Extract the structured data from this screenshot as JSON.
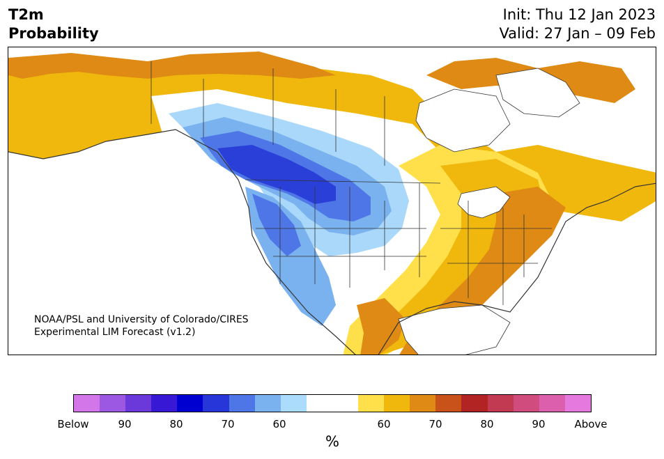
{
  "title": {
    "left_line1": "T2m",
    "left_line2": "Probability",
    "right_line1": "Init: Thu 12 Jan 2023",
    "right_line2": "Valid: 27 Jan – 09 Feb"
  },
  "map": {
    "credit_line1": "NOAA/PSL and University of Colorado/CIRES",
    "credit_line2": "Experimental LIM Forecast (v1.2)",
    "colors": {
      "ocean": "#ffffff",
      "coastline": "#333333",
      "blue_60": "#aad8fa",
      "blue_65": "#7ab2f0",
      "blue_70": "#4f76e6",
      "blue_75": "#2a3fd8",
      "yellow_60": "#ffe04a",
      "yellow_65": "#f0b80c",
      "orange_70": "#de8a14"
    }
  },
  "colorbar": {
    "colors": [
      "#d376e9",
      "#9d58e3",
      "#6b39d9",
      "#3718d4",
      "#0000d0",
      "#2636d8",
      "#4f76e6",
      "#7ab2f0",
      "#acdcfb",
      "#ffffff",
      "#ffffff",
      "#ffe04a",
      "#f0b80c",
      "#de8a14",
      "#c9521b",
      "#b22424",
      "#c13a52",
      "#d04c7f",
      "#dc5fae",
      "#e679dd"
    ],
    "labels": [
      "Below",
      "90",
      "80",
      "70",
      "60",
      "60",
      "70",
      "80",
      "90",
      "Above"
    ],
    "unit": "%"
  }
}
